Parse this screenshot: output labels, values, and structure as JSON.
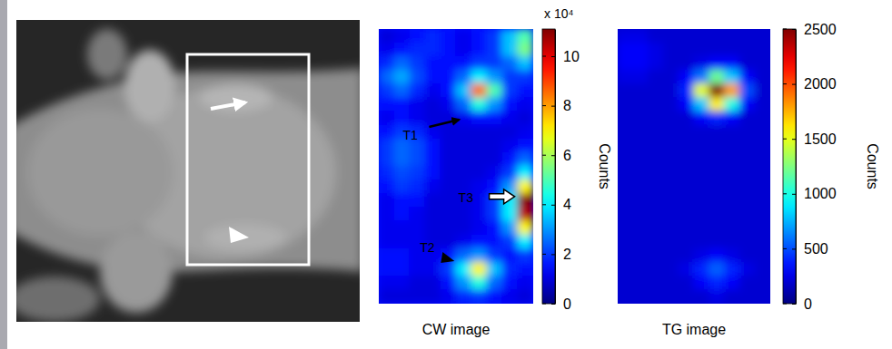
{
  "chart_data": [
    {
      "type": "heatmap",
      "title": "CW image",
      "zlabel": "Counts",
      "zscale_label": "x 10⁴",
      "color": "jet",
      "tick_labels": false,
      "zlim": [
        0,
        11.1
      ],
      "zticks": [
        0,
        2,
        4,
        6,
        8,
        10
      ],
      "z": [
        [
          1,
          1.2,
          1.5,
          1.8,
          1.5,
          1.2,
          1.5,
          2,
          3.5,
          5
        ],
        [
          1.2,
          1.5,
          1.8,
          1.8,
          1.5,
          1.2,
          1.5,
          2,
          3.5,
          5.5
        ],
        [
          1.8,
          2.5,
          2,
          1.5,
          1.5,
          1.5,
          2,
          2,
          2.5,
          3.5
        ],
        [
          2.5,
          3.2,
          2.2,
          1.5,
          1.5,
          2.5,
          4,
          3,
          2,
          2
        ],
        [
          2,
          2.5,
          1.8,
          1.2,
          1.5,
          3.5,
          8.5,
          5,
          2,
          1.5
        ],
        [
          1.5,
          1.5,
          1.2,
          1,
          1.2,
          2.5,
          4.5,
          3,
          1.5,
          1.2
        ],
        [
          1.2,
          1.5,
          1.2,
          1,
          1,
          1.2,
          1.5,
          1.5,
          1.2,
          1
        ],
        [
          1.5,
          2,
          1.8,
          1.2,
          1,
          1,
          1,
          1,
          1,
          1.2
        ],
        [
          2,
          2.5,
          2.2,
          1.5,
          1,
          1,
          1,
          1,
          1.2,
          1.5
        ],
        [
          2,
          2.5,
          2.2,
          1.5,
          1,
          1,
          1,
          1,
          1.5,
          2.5
        ],
        [
          1.8,
          2.2,
          2,
          1.5,
          1,
          1,
          1,
          1.2,
          2,
          4
        ],
        [
          1.5,
          2,
          1.8,
          1.2,
          1,
          1,
          1.2,
          1.5,
          3,
          7
        ],
        [
          1.2,
          1.5,
          1.5,
          1,
          1,
          1,
          1.2,
          2,
          4,
          11
        ],
        [
          1.2,
          1.5,
          1.2,
          1,
          1,
          1,
          1.2,
          2,
          4,
          10.5
        ],
        [
          1.2,
          1.2,
          1.2,
          1,
          1,
          1,
          1.2,
          1.5,
          3,
          7
        ],
        [
          1.2,
          1.2,
          1.2,
          1,
          1,
          1.2,
          1.5,
          1.5,
          2,
          4
        ],
        [
          1.5,
          1.5,
          1.2,
          1.2,
          1.5,
          2.5,
          3,
          2,
          1.5,
          2
        ],
        [
          1.5,
          1.5,
          1.2,
          1.2,
          2,
          4,
          7,
          3.5,
          1.8,
          1.5
        ],
        [
          1.2,
          1.2,
          1,
          1,
          1.5,
          3,
          4.5,
          2.5,
          1.5,
          1.2
        ],
        [
          1,
          1,
          1,
          1,
          1.2,
          1.8,
          2,
          1.5,
          1.2,
          1
        ]
      ],
      "annotations": [
        {
          "text": "T1",
          "x": 5.2,
          "y": 6.6,
          "marker": "arrow"
        },
        {
          "text": "T3",
          "x": 8.8,
          "y": 12.2,
          "marker": "hollow-arrow"
        },
        {
          "text": "T2",
          "x": 4.9,
          "y": 16.9,
          "marker": "triangle"
        }
      ]
    },
    {
      "type": "heatmap",
      "title": "TG image",
      "zlabel": "Counts",
      "color": "jet",
      "tick_labels": false,
      "zlim": [
        0,
        2500
      ],
      "zticks": [
        0,
        500,
        1000,
        1500,
        2000,
        2500
      ],
      "z": [
        [
          250,
          250,
          200,
          200,
          200,
          200,
          200,
          200,
          200,
          200
        ],
        [
          300,
          300,
          250,
          200,
          200,
          200,
          200,
          200,
          200,
          200
        ],
        [
          300,
          300,
          250,
          200,
          200,
          250,
          300,
          300,
          200,
          200
        ],
        [
          250,
          250,
          200,
          200,
          300,
          600,
          1200,
          800,
          300,
          200
        ],
        [
          200,
          200,
          200,
          200,
          400,
          1500,
          2500,
          1800,
          500,
          200
        ],
        [
          200,
          200,
          200,
          200,
          300,
          800,
          1600,
          1000,
          300,
          200
        ],
        [
          200,
          200,
          200,
          200,
          200,
          300,
          400,
          300,
          200,
          200
        ],
        [
          200,
          200,
          200,
          200,
          200,
          200,
          200,
          200,
          200,
          200
        ],
        [
          200,
          200,
          200,
          200,
          200,
          200,
          200,
          200,
          200,
          200
        ],
        [
          200,
          200,
          200,
          200,
          200,
          200,
          200,
          200,
          200,
          200
        ],
        [
          200,
          200,
          200,
          200,
          200,
          200,
          200,
          200,
          200,
          200
        ],
        [
          200,
          200,
          200,
          200,
          200,
          200,
          200,
          200,
          200,
          200
        ],
        [
          200,
          200,
          200,
          200,
          200,
          200,
          200,
          200,
          200,
          200
        ],
        [
          200,
          200,
          200,
          200,
          200,
          200,
          200,
          200,
          200,
          200
        ],
        [
          200,
          200,
          200,
          200,
          200,
          200,
          200,
          200,
          200,
          200
        ],
        [
          200,
          200,
          200,
          200,
          200,
          200,
          200,
          200,
          200,
          200
        ],
        [
          200,
          200,
          200,
          200,
          200,
          250,
          300,
          250,
          200,
          200
        ],
        [
          200,
          200,
          200,
          200,
          250,
          400,
          550,
          400,
          250,
          200
        ],
        [
          200,
          200,
          200,
          200,
          200,
          300,
          400,
          300,
          200,
          200
        ],
        [
          200,
          200,
          200,
          200,
          200,
          200,
          250,
          200,
          200,
          200
        ]
      ]
    }
  ]
}
